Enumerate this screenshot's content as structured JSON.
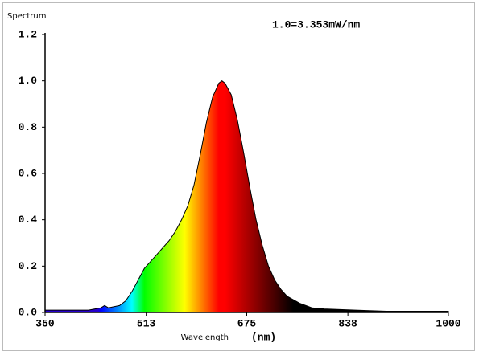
{
  "chart_data": {
    "type": "area",
    "y_label": "Spectrum",
    "annotation": "1.0=3.353mW/nm",
    "x_label": "Wavelength",
    "x_unit": "(nm)",
    "x": [
      350,
      380,
      420,
      440,
      446,
      452,
      470,
      480,
      490,
      500,
      510,
      520,
      530,
      540,
      550,
      560,
      570,
      580,
      590,
      600,
      610,
      620,
      630,
      635,
      640,
      650,
      660,
      670,
      680,
      690,
      700,
      710,
      720,
      730,
      740,
      760,
      780,
      800,
      850,
      900,
      1000
    ],
    "series": [
      {
        "color": "#000000",
        "values": [
          0.01,
          0.01,
          0.01,
          0.02,
          0.03,
          0.02,
          0.03,
          0.05,
          0.09,
          0.14,
          0.19,
          0.22,
          0.25,
          0.28,
          0.31,
          0.35,
          0.4,
          0.46,
          0.55,
          0.68,
          0.82,
          0.93,
          0.99,
          1.0,
          0.99,
          0.94,
          0.83,
          0.69,
          0.54,
          0.4,
          0.29,
          0.2,
          0.14,
          0.1,
          0.07,
          0.04,
          0.02,
          0.015,
          0.01,
          0.005,
          0.005
        ]
      }
    ],
    "xlim": [
      350,
      1000
    ],
    "xticks": [
      350,
      513,
      675,
      838,
      1000
    ],
    "ylim": [
      0,
      1.2
    ],
    "yticks": [
      {
        "value": 0,
        "label": "0.0"
      },
      0.2,
      0.4,
      0.6,
      0.8,
      {
        "value": 1,
        "label": "1.0"
      },
      1.2
    ]
  }
}
